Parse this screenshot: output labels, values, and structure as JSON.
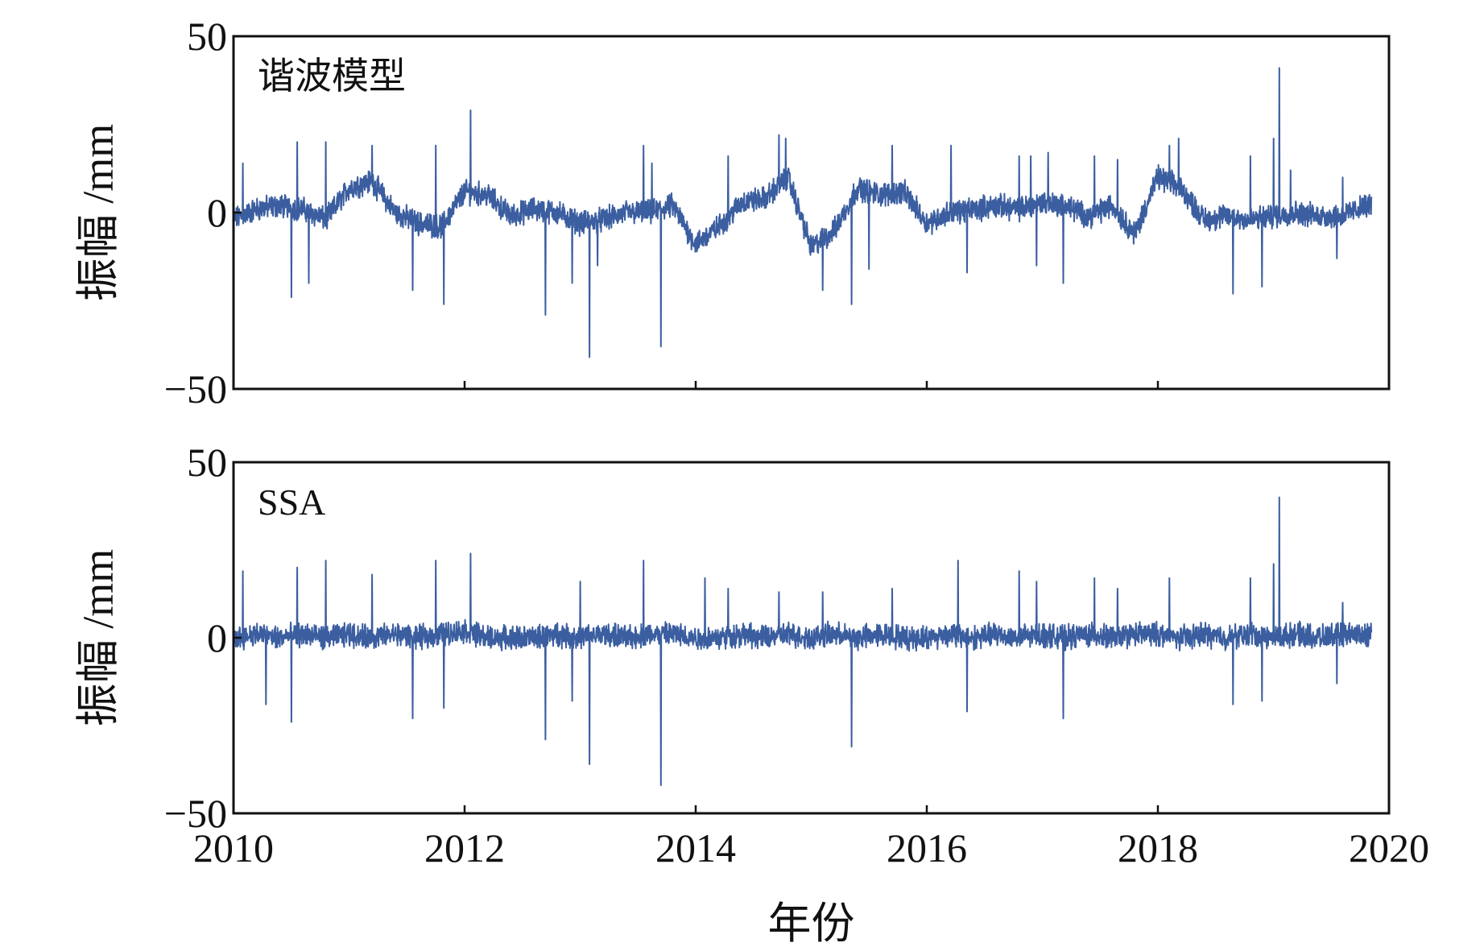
{
  "chart_data": [
    {
      "type": "line",
      "panel_label": "谐波模型",
      "ylabel": "振幅 /mm",
      "xlabel": "",
      "xlim": [
        2010,
        2020
      ],
      "ylim": [
        -50,
        50
      ],
      "yticks": [
        -50,
        0,
        50
      ],
      "xticks": [
        2010,
        2012,
        2014,
        2016,
        2018,
        2020
      ],
      "show_xtick_labels": false,
      "series": [
        {
          "color": "#3b5ea0",
          "x": [
            2010.0,
            2010.2,
            2010.4,
            2010.6,
            2010.8,
            2011.0,
            2011.2,
            2011.4,
            2011.6,
            2011.8,
            2012.0,
            2012.2,
            2012.4,
            2012.6,
            2012.8,
            2013.0,
            2013.2,
            2013.4,
            2013.6,
            2013.8,
            2014.0,
            2014.2,
            2014.4,
            2014.6,
            2014.8,
            2015.0,
            2015.2,
            2015.4,
            2015.6,
            2015.8,
            2016.0,
            2016.2,
            2016.4,
            2016.6,
            2016.8,
            2017.0,
            2017.2,
            2017.4,
            2017.6,
            2017.8,
            2018.0,
            2018.2,
            2018.4,
            2018.6,
            2018.8,
            2019.0,
            2019.2,
            2019.4,
            2019.6,
            2019.8
          ],
          "y": [
            -2,
            1,
            2,
            1,
            -2,
            7,
            9,
            0,
            -3,
            -4,
            6,
            5,
            -1,
            1,
            0,
            -3,
            -2,
            0,
            0,
            2,
            -9,
            -4,
            3,
            4,
            10,
            -10,
            -5,
            7,
            5,
            6,
            -3,
            0,
            1,
            2,
            1,
            3,
            2,
            -1,
            2,
            -6,
            10,
            7,
            -2,
            -1,
            -2,
            -1,
            0,
            -1,
            -1,
            2
          ]
        }
      ],
      "spikes": [
        {
          "x": 2010.08,
          "y": 14
        },
        {
          "x": 2010.55,
          "y": 20
        },
        {
          "x": 2010.8,
          "y": 20
        },
        {
          "x": 2010.5,
          "y": -24
        },
        {
          "x": 2010.65,
          "y": -20
        },
        {
          "x": 2011.2,
          "y": 19
        },
        {
          "x": 2011.55,
          "y": -22
        },
        {
          "x": 2011.75,
          "y": 19
        },
        {
          "x": 2011.82,
          "y": -26
        },
        {
          "x": 2012.05,
          "y": 29
        },
        {
          "x": 2012.7,
          "y": -29
        },
        {
          "x": 2012.93,
          "y": -20
        },
        {
          "x": 2013.08,
          "y": -41
        },
        {
          "x": 2013.15,
          "y": -15
        },
        {
          "x": 2013.55,
          "y": 19
        },
        {
          "x": 2013.7,
          "y": -38
        },
        {
          "x": 2013.62,
          "y": 14
        },
        {
          "x": 2014.28,
          "y": 16
        },
        {
          "x": 2014.72,
          "y": 22
        },
        {
          "x": 2014.78,
          "y": 21
        },
        {
          "x": 2015.1,
          "y": -22
        },
        {
          "x": 2015.35,
          "y": -26
        },
        {
          "x": 2015.5,
          "y": -16
        },
        {
          "x": 2015.7,
          "y": 19
        },
        {
          "x": 2016.21,
          "y": 19
        },
        {
          "x": 2016.35,
          "y": -17
        },
        {
          "x": 2016.8,
          "y": 16
        },
        {
          "x": 2016.9,
          "y": 16
        },
        {
          "x": 2016.95,
          "y": -15
        },
        {
          "x": 2017.05,
          "y": 17
        },
        {
          "x": 2017.18,
          "y": -20
        },
        {
          "x": 2017.45,
          "y": 16
        },
        {
          "x": 2017.65,
          "y": 15
        },
        {
          "x": 2018.1,
          "y": 19
        },
        {
          "x": 2018.18,
          "y": 21
        },
        {
          "x": 2018.65,
          "y": -23
        },
        {
          "x": 2018.8,
          "y": 16
        },
        {
          "x": 2018.9,
          "y": -21
        },
        {
          "x": 2019.0,
          "y": 21
        },
        {
          "x": 2019.05,
          "y": 41
        },
        {
          "x": 2019.15,
          "y": 12
        },
        {
          "x": 2019.55,
          "y": -13
        },
        {
          "x": 2019.6,
          "y": 10
        }
      ]
    },
    {
      "type": "line",
      "panel_label": "SSA",
      "ylabel": "振幅 /mm",
      "xlabel": "年份",
      "xlim": [
        2010,
        2020
      ],
      "ylim": [
        -50,
        50
      ],
      "yticks": [
        -50,
        0,
        50
      ],
      "xticks": [
        2010,
        2012,
        2014,
        2016,
        2018,
        2020
      ],
      "show_xtick_labels": true,
      "series": [
        {
          "color": "#3b5ea0",
          "x": [
            2010.0,
            2010.2,
            2010.4,
            2010.6,
            2010.8,
            2011.0,
            2011.2,
            2011.4,
            2011.6,
            2011.8,
            2012.0,
            2012.2,
            2012.4,
            2012.6,
            2012.8,
            2013.0,
            2013.2,
            2013.4,
            2013.6,
            2013.8,
            2014.0,
            2014.2,
            2014.4,
            2014.6,
            2014.8,
            2015.0,
            2015.2,
            2015.4,
            2015.6,
            2015.8,
            2016.0,
            2016.2,
            2016.4,
            2016.6,
            2016.8,
            2017.0,
            2017.2,
            2017.4,
            2017.6,
            2017.8,
            2018.0,
            2018.2,
            2018.4,
            2018.6,
            2018.8,
            2019.0,
            2019.2,
            2019.4,
            2019.6,
            2019.8
          ],
          "y": [
            0,
            1,
            0,
            1,
            0,
            1,
            0,
            1,
            0,
            1,
            2,
            0,
            0,
            0,
            1,
            0,
            1,
            0,
            1,
            1,
            0,
            0,
            1,
            0,
            1,
            0,
            1,
            0,
            1,
            0,
            0,
            1,
            0,
            1,
            0,
            1,
            0,
            1,
            0,
            1,
            1,
            0,
            1,
            0,
            1,
            0,
            1,
            0,
            1,
            1
          ]
        }
      ],
      "spikes": [
        {
          "x": 2010.08,
          "y": 19
        },
        {
          "x": 2010.55,
          "y": 20
        },
        {
          "x": 2010.8,
          "y": 22
        },
        {
          "x": 2010.5,
          "y": -24
        },
        {
          "x": 2010.28,
          "y": -19
        },
        {
          "x": 2011.2,
          "y": 18
        },
        {
          "x": 2011.55,
          "y": -23
        },
        {
          "x": 2011.75,
          "y": 22
        },
        {
          "x": 2011.82,
          "y": -20
        },
        {
          "x": 2012.05,
          "y": 24
        },
        {
          "x": 2012.7,
          "y": -29
        },
        {
          "x": 2012.93,
          "y": -18
        },
        {
          "x": 2013.08,
          "y": -36
        },
        {
          "x": 2013.0,
          "y": 16
        },
        {
          "x": 2013.55,
          "y": 22
        },
        {
          "x": 2013.7,
          "y": -42
        },
        {
          "x": 2014.08,
          "y": 17
        },
        {
          "x": 2014.28,
          "y": 14
        },
        {
          "x": 2014.72,
          "y": 13
        },
        {
          "x": 2015.1,
          "y": 13
        },
        {
          "x": 2015.35,
          "y": -31
        },
        {
          "x": 2015.7,
          "y": 14
        },
        {
          "x": 2016.27,
          "y": 22
        },
        {
          "x": 2016.35,
          "y": -21
        },
        {
          "x": 2016.8,
          "y": 19
        },
        {
          "x": 2016.95,
          "y": 16
        },
        {
          "x": 2017.18,
          "y": -23
        },
        {
          "x": 2017.45,
          "y": 17
        },
        {
          "x": 2017.65,
          "y": 14
        },
        {
          "x": 2018.1,
          "y": 17
        },
        {
          "x": 2018.65,
          "y": -19
        },
        {
          "x": 2018.8,
          "y": 17
        },
        {
          "x": 2018.9,
          "y": -18
        },
        {
          "x": 2019.0,
          "y": 21
        },
        {
          "x": 2019.05,
          "y": 40
        },
        {
          "x": 2019.55,
          "y": -13
        },
        {
          "x": 2019.6,
          "y": 10
        }
      ]
    }
  ]
}
